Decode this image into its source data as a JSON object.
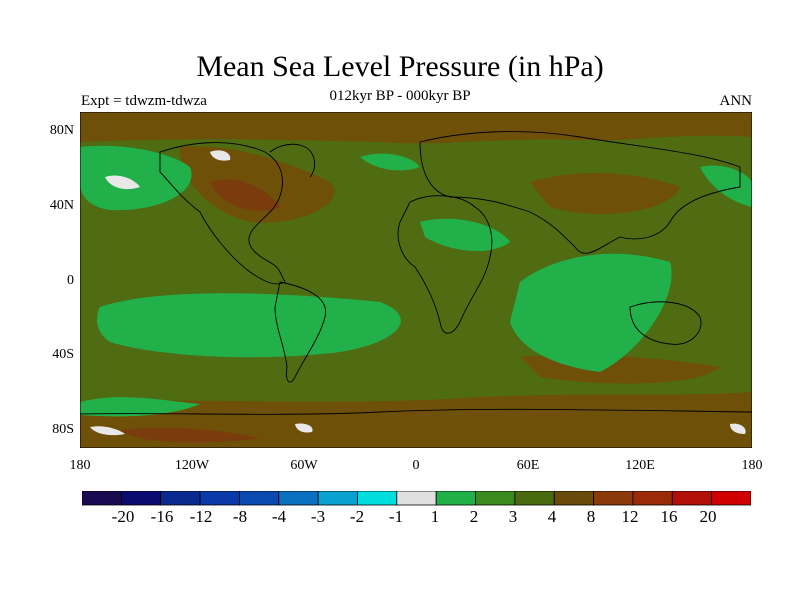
{
  "title": "Mean Sea Level Pressure (in hPa)",
  "subtitle": "012kyr BP - 000kyr BP",
  "experiment": "Expt = tdwzm-tdwza",
  "season": "ANN",
  "lat_labels": [
    "80N",
    "40N",
    "0",
    "40S",
    "80S"
  ],
  "lon_labels": [
    "180",
    "120W",
    "60W",
    "0",
    "60E",
    "120E",
    "180"
  ],
  "legend": {
    "colors": [
      "#1a0a50",
      "#0a0a70",
      "#0a2a90",
      "#0a3aa8",
      "#0a4ab0",
      "#0a70c0",
      "#0aa0d0",
      "#00dddd",
      "#e0e0e0",
      "#20b048",
      "#3a8a20",
      "#4a6a10",
      "#6a4a08",
      "#8a3a08",
      "#9a2a08",
      "#b01008",
      "#d00000"
    ],
    "labels": [
      "-20",
      "-16",
      "-12",
      "-8",
      "-4",
      "-3",
      "-2",
      "-1",
      "1",
      "2",
      "3",
      "4",
      "8",
      "12",
      "16",
      "20"
    ]
  }
}
